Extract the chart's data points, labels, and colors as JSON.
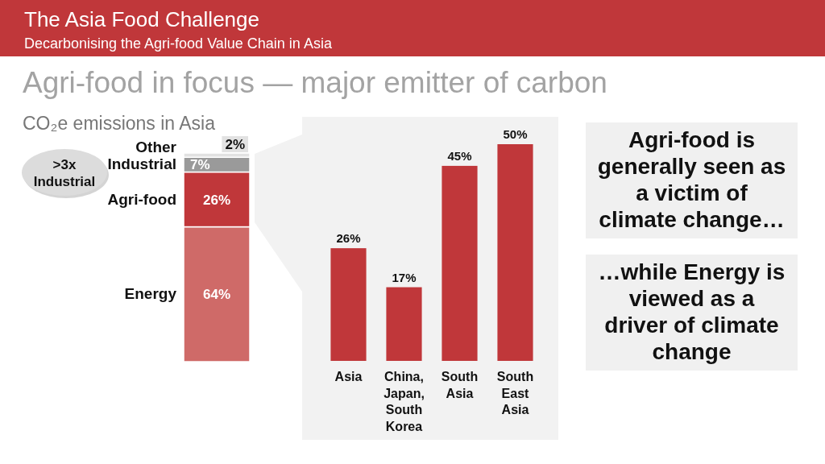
{
  "chart_data": [
    {
      "type": "other",
      "title": "The Asia Food Challenge",
      "subtitle": "Decarbonising the Agri-food Value Chain in Asia"
    },
    {
      "type": "bar",
      "stacked": true,
      "title": "Agri-food in focus — major emitter of carbon",
      "subtitle": "CO₂e emissions in Asia",
      "categories": [
        null
      ],
      "series": [
        {
          "name": "Energy",
          "color": "#cf6a68",
          "values": [
            64
          ],
          "value_labels": [
            "64%"
          ]
        },
        {
          "name": "Agri-food",
          "color": "#c0373a",
          "values": [
            26
          ],
          "value_labels": [
            "26%"
          ]
        },
        {
          "name": "Industrial",
          "color": "#9a9a9a",
          "values": [
            7
          ],
          "value_labels": [
            "7%"
          ]
        },
        {
          "name": "Other",
          "color": "#e2e2e2",
          "values": [
            2
          ],
          "value_labels": [
            "2%"
          ]
        }
      ],
      "annotations": [
        ">3x Industrial"
      ]
    },
    {
      "type": "bar",
      "categories": [
        "Asia",
        "China, Japan, South Korea",
        "South Asia",
        "South East Asia"
      ],
      "values": [
        26,
        17,
        45,
        50
      ],
      "color": "#c0373a",
      "value_labels": [
        "26%",
        "17%",
        "45%",
        "50%"
      ]
    },
    {
      "type": "other",
      "annotations": [
        "Agri-food is generally seen as a victim of climate change…",
        "…while Energy is viewed as a driver of climate change"
      ]
    }
  ]
}
